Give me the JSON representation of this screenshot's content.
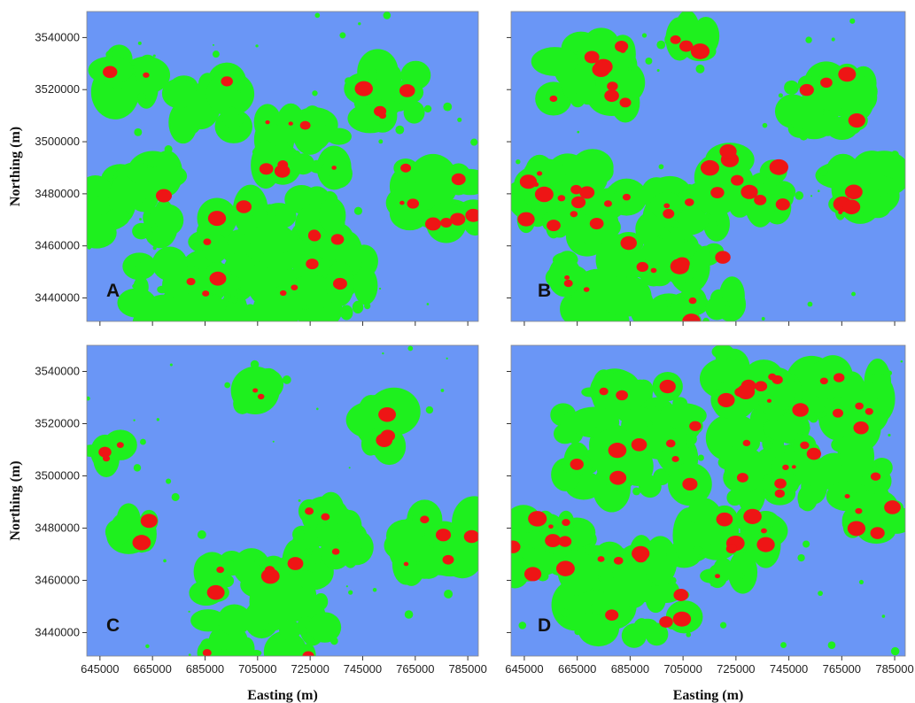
{
  "axes": {
    "y_title": "Northing (m)",
    "x_title": "Easting (m)",
    "xlim": [
      640000,
      789000
    ],
    "ylim": [
      3431000,
      3550000
    ],
    "xticks": [
      645000,
      665000,
      685000,
      705000,
      725000,
      745000,
      765000,
      785000
    ],
    "yticks": [
      3440000,
      3460000,
      3480000,
      3500000,
      3520000,
      3540000
    ]
  },
  "panels": [
    {
      "label": "A"
    },
    {
      "label": "B"
    },
    {
      "label": "C"
    },
    {
      "label": "D"
    }
  ]
}
